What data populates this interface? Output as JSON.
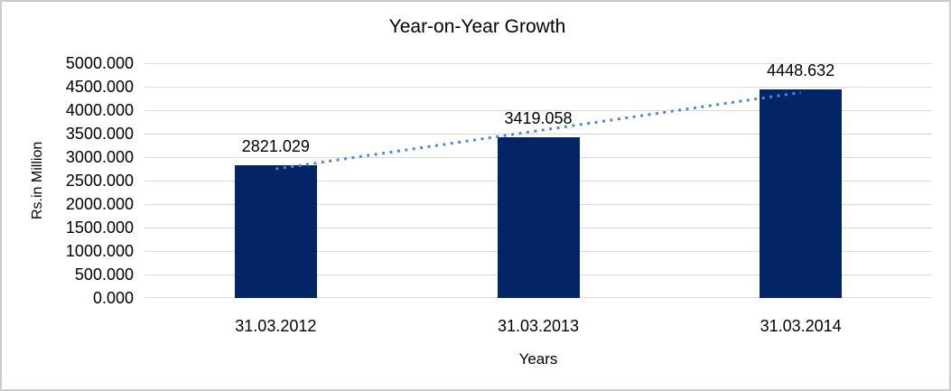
{
  "chart_data": {
    "type": "bar",
    "title": "Year-on-Year Growth",
    "xlabel": "Years",
    "ylabel": "Rs.in Million",
    "categories": [
      "31.03.2012",
      "31.03.2013",
      "31.03.2014"
    ],
    "values": [
      2821.029,
      3419.058,
      4448.632
    ],
    "data_labels": [
      "2821.029",
      "3419.058",
      "4448.632"
    ],
    "ylim": [
      0,
      5000
    ],
    "y_tick_step": 500,
    "y_tick_labels": [
      "0.000",
      "500.000",
      "1000.000",
      "1500.000",
      "2000.000",
      "2500.000",
      "3000.000",
      "3500.000",
      "4000.000",
      "4500.000",
      "5000.000"
    ],
    "grid": true,
    "legend": "none",
    "trendline": {
      "type": "linear",
      "style": "dotted",
      "spans": "first-to-last-category"
    },
    "colors": {
      "bar": "#032565",
      "trendline": "#4f87d3",
      "gridline": "#d9d9d9",
      "text": "#000000",
      "frame_border": "#cbcbcb",
      "background": "#ffffff"
    }
  }
}
